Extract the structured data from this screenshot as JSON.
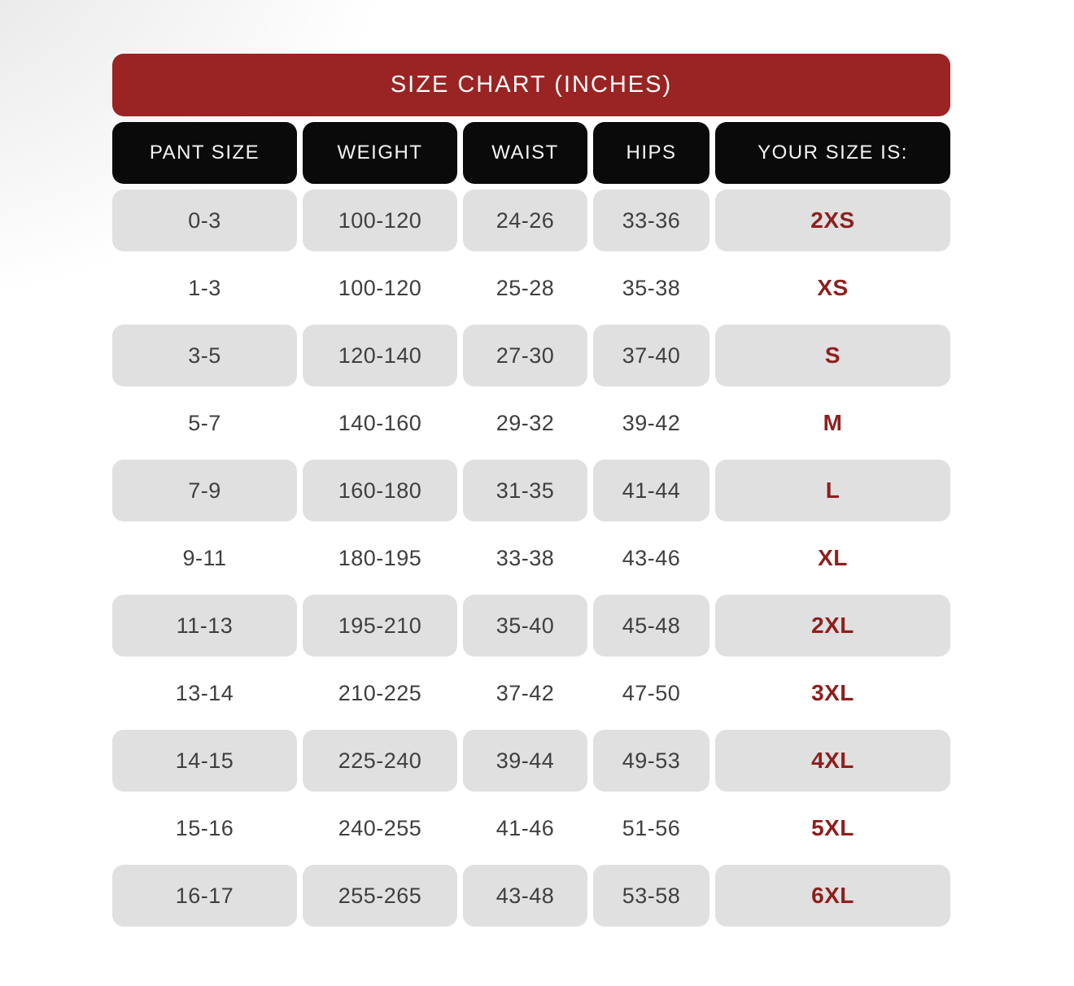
{
  "table": {
    "title": "SIZE CHART (INCHES)",
    "columns": [
      "PANT SIZE",
      "WEIGHT",
      "WAIST",
      "HIPS",
      "YOUR SIZE IS:"
    ],
    "rows": [
      [
        "0-3",
        "100-120",
        "24-26",
        "33-36",
        "2XS"
      ],
      [
        "1-3",
        "100-120",
        "25-28",
        "35-38",
        "XS"
      ],
      [
        "3-5",
        "120-140",
        "27-30",
        "37-40",
        "S"
      ],
      [
        "5-7",
        "140-160",
        "29-32",
        "39-42",
        "M"
      ],
      [
        "7-9",
        "160-180",
        "31-35",
        "41-44",
        "L"
      ],
      [
        "9-11",
        "180-195",
        "33-38",
        "43-46",
        "XL"
      ],
      [
        "11-13",
        "195-210",
        "35-40",
        "45-48",
        "2XL"
      ],
      [
        "13-14",
        "210-225",
        "37-42",
        "47-50",
        "3XL"
      ],
      [
        "14-15",
        "225-240",
        "39-44",
        "49-53",
        "4XL"
      ],
      [
        "15-16",
        "240-255",
        "41-46",
        "51-56",
        "5XL"
      ],
      [
        "16-17",
        "255-265",
        "43-48",
        "53-58",
        "6XL"
      ]
    ]
  },
  "colors": {
    "banner_red": "#9a2423",
    "header_black": "#0a0a0a",
    "row_gray": "#e0e0e0",
    "size_red": "#8e1f1e",
    "text_dark": "#3f3f3f"
  }
}
